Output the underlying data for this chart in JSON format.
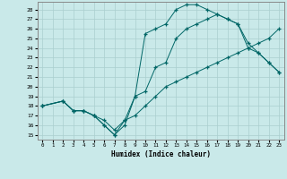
{
  "xlabel": "Humidex (Indice chaleur)",
  "xlim": [
    -0.5,
    23.5
  ],
  "ylim": [
    14.5,
    28.8
  ],
  "xticks": [
    0,
    1,
    2,
    3,
    4,
    5,
    6,
    7,
    8,
    9,
    10,
    11,
    12,
    13,
    14,
    15,
    16,
    17,
    18,
    19,
    20,
    21,
    22,
    23
  ],
  "yticks": [
    15,
    16,
    17,
    18,
    19,
    20,
    21,
    22,
    23,
    24,
    25,
    26,
    27,
    28
  ],
  "background_color": "#c9e9e9",
  "grid_color": "#aacfcf",
  "line_color": "#006666",
  "line1_x": [
    0,
    2,
    3,
    4,
    5,
    6,
    7,
    8,
    9,
    10,
    11,
    12,
    13,
    14,
    15,
    16,
    17,
    18,
    19,
    20,
    21,
    22,
    23
  ],
  "line1_y": [
    18,
    18.5,
    17.5,
    17.5,
    17,
    16.5,
    15.5,
    16.5,
    17,
    18,
    19,
    20,
    20.5,
    21,
    21.5,
    22,
    22.5,
    23,
    23.5,
    24,
    24.5,
    25,
    26
  ],
  "line2_x": [
    0,
    2,
    3,
    4,
    5,
    6,
    7,
    8,
    9,
    10,
    11,
    12,
    13,
    14,
    15,
    16,
    17,
    18,
    19,
    20,
    21,
    22,
    23
  ],
  "line2_y": [
    18,
    18.5,
    17.5,
    17.5,
    17,
    16,
    15,
    16,
    19,
    19.5,
    22,
    22.5,
    25,
    26,
    26.5,
    27,
    27.5,
    27,
    26.5,
    24.5,
    23.5,
    22.5,
    21.5
  ],
  "line3_x": [
    0,
    2,
    3,
    4,
    5,
    6,
    7,
    8,
    9,
    10,
    11,
    12,
    13,
    14,
    15,
    16,
    17,
    18,
    19,
    20,
    21,
    22,
    23
  ],
  "line3_y": [
    18,
    18.5,
    17.5,
    17.5,
    17,
    16,
    15,
    16.5,
    19,
    25.5,
    26,
    26.5,
    28,
    28.5,
    28.5,
    28,
    27.5,
    27,
    26.5,
    24,
    23.5,
    22.5,
    21.5
  ]
}
